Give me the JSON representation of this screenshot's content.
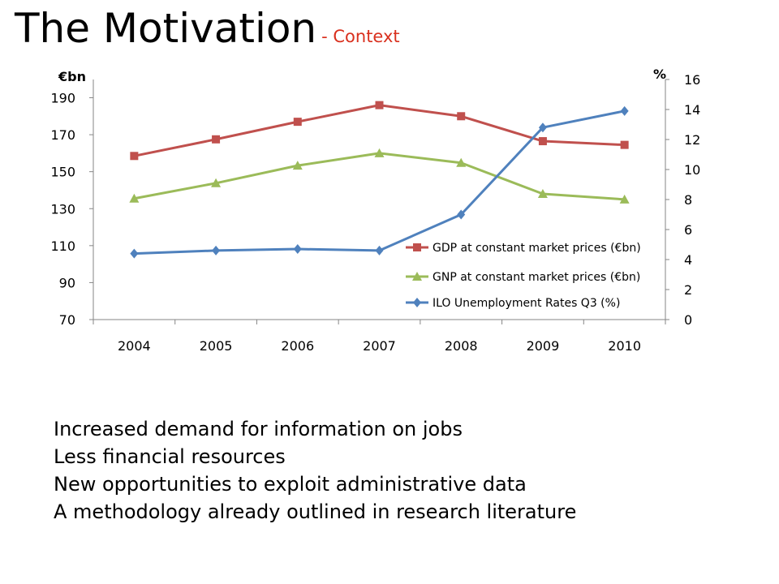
{
  "slide": {
    "title": "The Motivation",
    "subtitle": "- Context",
    "bullets": [
      "Increased demand for information on jobs",
      "Less financial resources",
      "New opportunities to exploit administrative data",
      "A methodology already outlined in research literature"
    ]
  },
  "colors": {
    "gdp": "#c0504d",
    "gnp": "#9bbb59",
    "ilo": "#4f81bd",
    "subtitle": "#d9301e"
  },
  "chart_data": {
    "type": "line",
    "categories": [
      "2004",
      "2005",
      "2006",
      "2007",
      "2008",
      "2009",
      "2010"
    ],
    "left_axis": {
      "label": "€bn",
      "min": 70,
      "max": 200,
      "ticks": [
        70,
        90,
        110,
        130,
        150,
        170,
        190
      ]
    },
    "right_axis": {
      "label": "%",
      "min": 0,
      "max": 16,
      "ticks": [
        0,
        2,
        4,
        6,
        8,
        10,
        12,
        14,
        16
      ]
    },
    "legend_position": "inside-bottom-right",
    "grid": false,
    "series": [
      {
        "name": "GDP at constant market prices  (€bn)",
        "axis": "left",
        "marker": "square",
        "color_key": "gdp",
        "values": [
          158.5,
          167.5,
          177,
          186,
          180,
          166.5,
          164.5
        ]
      },
      {
        "name": "GNP at constant market prices (€bn)",
        "axis": "left",
        "marker": "triangle",
        "color_key": "gnp",
        "values": [
          135.5,
          143.8,
          153.3,
          160,
          154.8,
          138,
          135
        ]
      },
      {
        "name": "ILO Unemployment Rates Q3 (%)",
        "axis": "right",
        "marker": "diamond",
        "color_key": "ilo",
        "values": [
          4.4,
          4.6,
          4.7,
          4.6,
          7.0,
          12.8,
          13.9
        ]
      }
    ]
  }
}
